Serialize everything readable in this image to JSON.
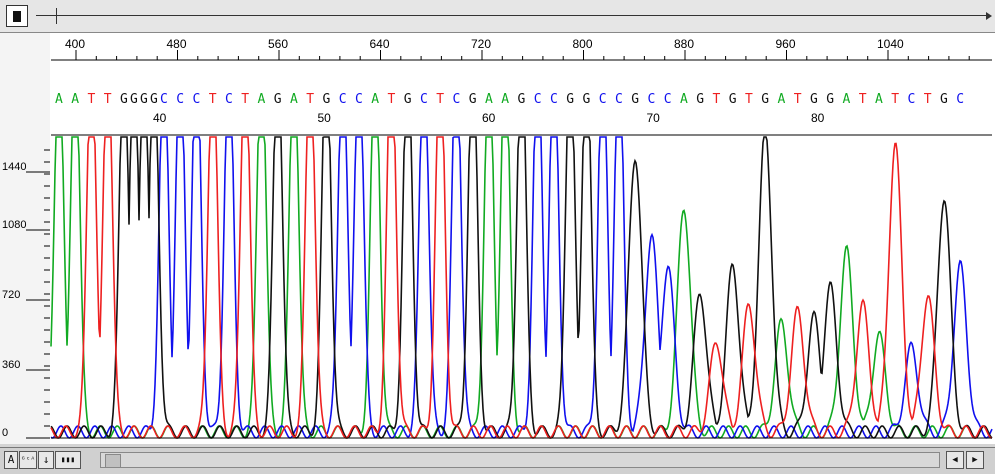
{
  "ruler": {
    "labels": [
      "400",
      "480",
      "560",
      "640",
      "720",
      "800",
      "880",
      "960",
      "1040"
    ]
  },
  "bases": [
    {
      "b": "A"
    },
    {
      "b": "A"
    },
    {
      "b": "T"
    },
    {
      "b": "T"
    },
    {
      "b": "G"
    },
    {
      "b": "G"
    },
    {
      "b": "G"
    },
    {
      "b": "G"
    },
    {
      "b": "C"
    },
    {
      "b": "C"
    },
    {
      "b": "C"
    },
    {
      "b": "T"
    },
    {
      "b": "C"
    },
    {
      "b": "T"
    },
    {
      "b": "A"
    },
    {
      "b": "G"
    },
    {
      "b": "A"
    },
    {
      "b": "T"
    },
    {
      "b": "G"
    },
    {
      "b": "C"
    },
    {
      "b": "C"
    },
    {
      "b": "A"
    },
    {
      "b": "T"
    },
    {
      "b": "G"
    },
    {
      "b": "C"
    },
    {
      "b": "T"
    },
    {
      "b": "C"
    },
    {
      "b": "G"
    },
    {
      "b": "A"
    },
    {
      "b": "A"
    },
    {
      "b": "G"
    },
    {
      "b": "C"
    },
    {
      "b": "C"
    },
    {
      "b": "G"
    },
    {
      "b": "G"
    },
    {
      "b": "C"
    },
    {
      "b": "C"
    },
    {
      "b": "G"
    },
    {
      "b": "C"
    },
    {
      "b": "C"
    },
    {
      "b": "A"
    },
    {
      "b": "G"
    },
    {
      "b": "T"
    },
    {
      "b": "G"
    },
    {
      "b": "T"
    },
    {
      "b": "G"
    },
    {
      "b": "A"
    },
    {
      "b": "T"
    },
    {
      "b": "G"
    },
    {
      "b": "G"
    },
    {
      "b": "A"
    },
    {
      "b": "T"
    },
    {
      "b": "A"
    },
    {
      "b": "T"
    },
    {
      "b": "C"
    },
    {
      "b": "T"
    },
    {
      "b": "G"
    },
    {
      "b": "C"
    }
  ],
  "base_numbers": [
    "40",
    "50",
    "60",
    "70",
    "80"
  ],
  "y_axis": {
    "labels": [
      "1440",
      "1080",
      "720",
      "360",
      "0"
    ]
  },
  "colors": {
    "A": "#11aa22",
    "C": "#1010ee",
    "G": "#111111",
    "T": "#ee2020"
  },
  "bottom_controls": [
    {
      "label": "A"
    },
    {
      "label": "ᴳᶜᴬ"
    },
    {
      "label": "↓"
    },
    {
      "label": "▮▮▮"
    }
  ],
  "scroll_arrows": [
    "◀",
    "▶"
  ]
}
